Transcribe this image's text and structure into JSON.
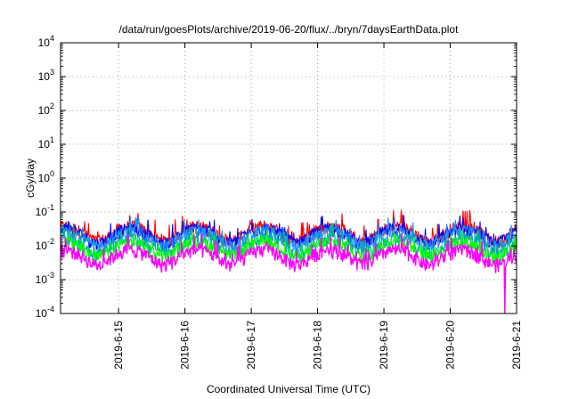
{
  "chart_data": {
    "type": "line",
    "title": "/data/run/goesPlots/archive/2019-06-20/flux/../bryn/7daysEarthData.plot",
    "xlabel": "Coordinated Universal Time (UTC)",
    "ylabel": "cGy/day",
    "yscale": "log",
    "ylim": [
      0.0001,
      10000
    ],
    "ytick_labels": [
      {
        "base": "10",
        "exp": "-4"
      },
      {
        "base": "10",
        "exp": "-3"
      },
      {
        "base": "10",
        "exp": "-2"
      },
      {
        "base": "10",
        "exp": "-1"
      },
      {
        "base": "10",
        "exp": "0"
      },
      {
        "base": "10",
        "exp": "1"
      },
      {
        "base": "10",
        "exp": "2"
      },
      {
        "base": "10",
        "exp": "3"
      },
      {
        "base": "10",
        "exp": "4"
      }
    ],
    "xlim": [
      "2019-06-14T03:00",
      "2019-06-21T00:00"
    ],
    "xtick_labels": [
      "2019-6-15",
      "2019-6-16",
      "2019-6-17",
      "2019-6-18",
      "2019-6-19",
      "2019-6-20",
      "2019-6-21"
    ],
    "grid": true,
    "legend": "none",
    "series": [
      {
        "color": "#ff0000",
        "typical": 0.035,
        "peak": 0.08,
        "note_period_days": 1
      },
      {
        "color": "#0000ff",
        "typical": 0.03,
        "peak": 0.06
      },
      {
        "color": "#1e90ff",
        "typical": 0.025,
        "peak": 0.05
      },
      {
        "color": "#00b0a0",
        "typical": 0.015,
        "peak": 0.03
      },
      {
        "color": "#00ff00",
        "typical": 0.012,
        "peak": 0.02
      },
      {
        "color": "#ff00ff",
        "typical": 0.007,
        "peak": 0.015,
        "min": 0.0001
      }
    ]
  }
}
